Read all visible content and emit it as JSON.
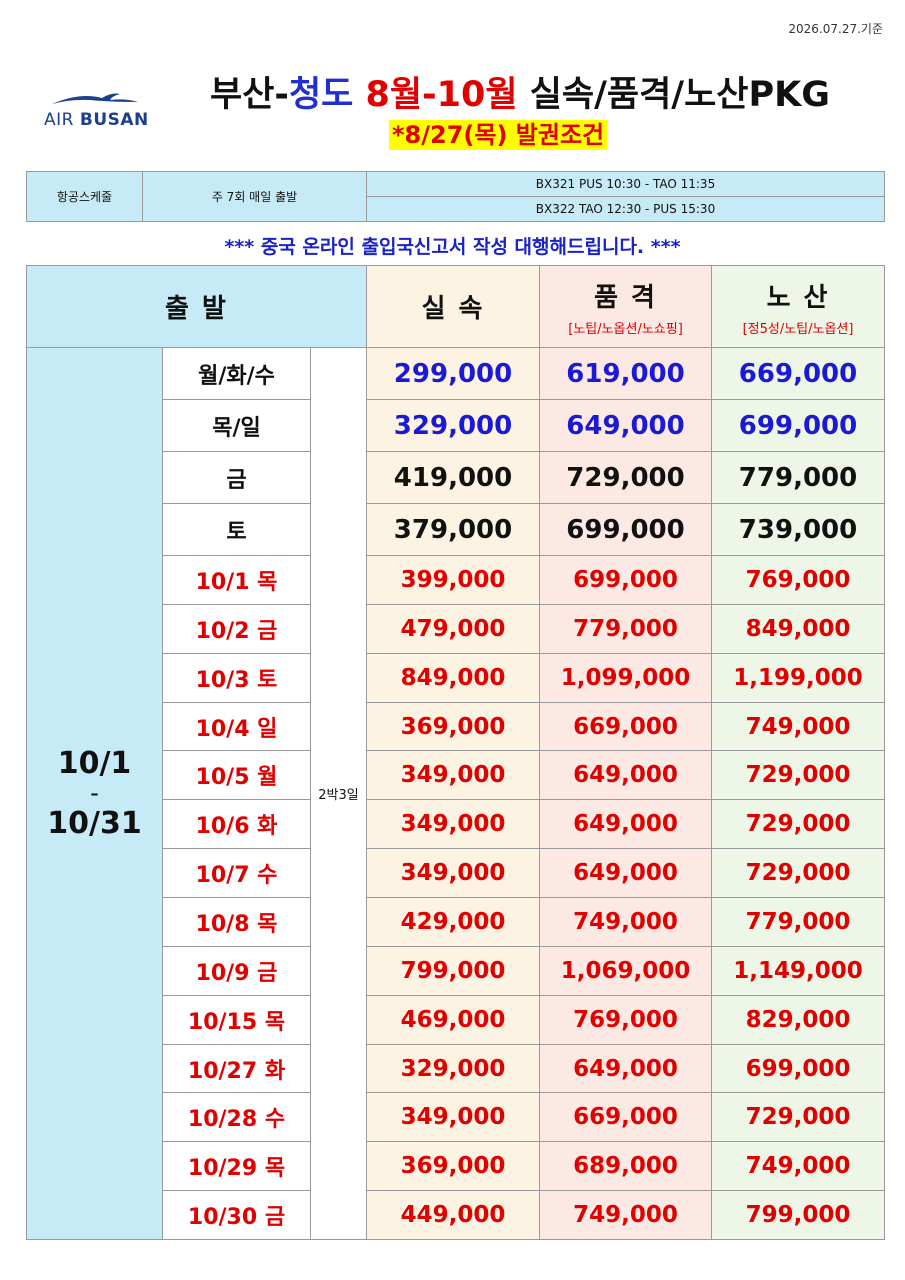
{
  "header": {
    "date": "2026.07.27.기준",
    "logo": {
      "air": "AIR",
      "busan": "BUSAN"
    },
    "title": [
      {
        "text": "부산-",
        "color": "#111111"
      },
      {
        "text": "청도",
        "color": "#1f2fd0"
      },
      {
        "text": " 8월-10월 ",
        "color": "#e00000"
      },
      {
        "text": "실속/품격/노산PKG",
        "color": "#111111"
      }
    ],
    "subtitle": "*8/27(목) 발권조건"
  },
  "schedule": {
    "label": "항공스케줄",
    "frequency": "주 7회 매일 출발",
    "flights": [
      "BX321 PUS 10:30 - TAO 11:35",
      "BX322 TAO 12:30 - PUS 15:30"
    ]
  },
  "notice": "*** 중국 온라인 출입국신고서 작성 대행해드립니다. ***",
  "table": {
    "columns": {
      "departure": "출 발",
      "products": [
        {
          "name": "실 속"
        },
        {
          "name": "품 격",
          "note": "[노팁/노옵션/노쇼핑]"
        },
        {
          "name": "노 산",
          "note": "[정5성/노팁/노옵션]"
        }
      ]
    },
    "period": [
      "10/1",
      "–",
      "10/31"
    ],
    "duration": "2박3일",
    "rows": [
      {
        "day": "월/화/수",
        "prices": [
          "299,000",
          "619,000",
          "669,000"
        ],
        "color": "#1a1ad6"
      },
      {
        "day": "목/일",
        "prices": [
          "329,000",
          "649,000",
          "699,000"
        ],
        "color": "#1a1ad6"
      },
      {
        "day": "금",
        "prices": [
          "419,000",
          "729,000",
          "779,000"
        ],
        "color": "#111111"
      },
      {
        "day": "토",
        "prices": [
          "379,000",
          "699,000",
          "739,000"
        ],
        "color": "#111111"
      },
      {
        "day": "10/1 목",
        "prices": [
          "399,000",
          "699,000",
          "769,000"
        ],
        "color": "#e00000"
      },
      {
        "day": "10/2 금",
        "prices": [
          "479,000",
          "779,000",
          "849,000"
        ],
        "color": "#e00000"
      },
      {
        "day": "10/3 토",
        "prices": [
          "849,000",
          "1,099,000",
          "1,199,000"
        ],
        "color": "#e00000"
      },
      {
        "day": "10/4 일",
        "prices": [
          "369,000",
          "669,000",
          "749,000"
        ],
        "color": "#e00000"
      },
      {
        "day": "10/5 월",
        "prices": [
          "349,000",
          "649,000",
          "729,000"
        ],
        "color": "#e00000"
      },
      {
        "day": "10/6 화",
        "prices": [
          "349,000",
          "649,000",
          "729,000"
        ],
        "color": "#e00000"
      },
      {
        "day": "10/7 수",
        "prices": [
          "349,000",
          "649,000",
          "729,000"
        ],
        "color": "#e00000"
      },
      {
        "day": "10/8 목",
        "prices": [
          "429,000",
          "749,000",
          "779,000"
        ],
        "color": "#e00000"
      },
      {
        "day": "10/9 금",
        "prices": [
          "799,000",
          "1,069,000",
          "1,149,000"
        ],
        "color": "#e00000"
      },
      {
        "day": "10/15 목",
        "prices": [
          "469,000",
          "769,000",
          "829,000"
        ],
        "color": "#e00000"
      },
      {
        "day": "10/27 화",
        "prices": [
          "329,000",
          "649,000",
          "699,000"
        ],
        "color": "#e00000"
      },
      {
        "day": "10/28 수",
        "prices": [
          "349,000",
          "669,000",
          "729,000"
        ],
        "color": "#e00000"
      },
      {
        "day": "10/29 목",
        "prices": [
          "369,000",
          "689,000",
          "749,000"
        ],
        "color": "#e00000"
      },
      {
        "day": "10/30 금",
        "prices": [
          "449,000",
          "749,000",
          "799,000"
        ],
        "color": "#e00000"
      }
    ]
  }
}
